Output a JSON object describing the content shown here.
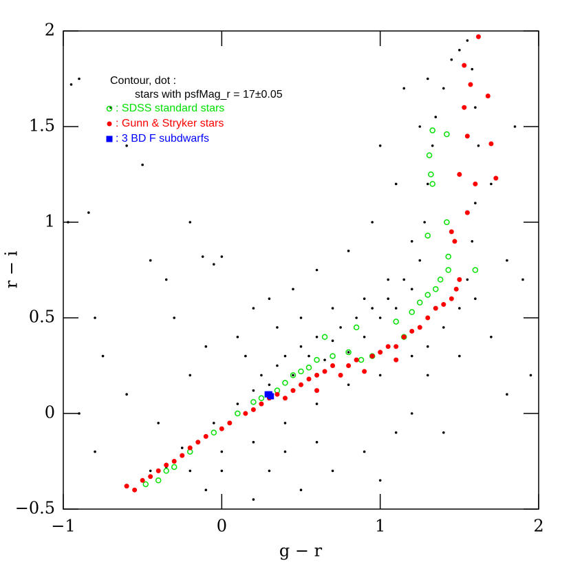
{
  "chart_data": {
    "type": "scatter",
    "x_label": "g − r",
    "y_label": "r − i",
    "annotations": [
      "Contour, dot :",
      "stars with psfMag_r = 17±0.05"
    ],
    "xlim": [
      -1,
      2
    ],
    "ylim": [
      -0.5,
      2
    ],
    "xticks": [
      {
        "value": -1,
        "label": "−1"
      },
      0,
      1,
      2
    ],
    "yticks": [
      {
        "value": -0.5,
        "label": "−0.5"
      },
      0,
      0.5,
      1,
      1.5,
      2
    ],
    "series": [
      {
        "color": "#000000",
        "marker": "dot",
        "x": [
          -0.97,
          -0.95,
          -0.9,
          -0.84,
          -0.8,
          -0.75,
          -0.7,
          -0.6,
          -0.5,
          -0.45,
          -0.35,
          -0.3,
          -0.2,
          -0.12,
          -0.05,
          0.0,
          -0.9,
          -0.8,
          -0.6,
          -0.4,
          -0.2,
          -0.1,
          0.1,
          0.2,
          0.3,
          0.45,
          0.6,
          0.8,
          0.95,
          1.0,
          1.1,
          1.2,
          1.25,
          1.3,
          1.15,
          1.7,
          1.8,
          1.85,
          1.9,
          1.95,
          1.8,
          1.7,
          1.6,
          1.5,
          1.3,
          1.2,
          1.1,
          0.9,
          0.7,
          0.5,
          0.4,
          0.3,
          0.2,
          0.0,
          -0.1,
          0.6,
          1.4,
          1.0,
          0.15,
          0.35,
          0.5,
          0.7,
          0.9,
          1.05,
          -0.55,
          -0.45,
          -0.35,
          -0.25,
          -0.15,
          -0.05,
          0.05,
          0.1,
          0.15,
          0.2,
          0.25,
          0.3,
          0.35,
          0.4,
          0.45,
          0.5,
          0.55,
          0.6,
          0.65,
          0.7,
          0.75,
          0.8,
          0.85,
          0.9,
          0.95,
          1.0,
          1.05,
          1.1,
          1.15,
          1.2,
          1.25,
          1.28,
          1.3,
          1.33,
          1.35,
          1.4,
          1.45,
          1.5,
          1.55,
          1.58,
          1.6,
          1.62,
          1.6,
          1.58,
          1.55,
          1.5,
          1.4,
          1.3,
          1.2,
          1.0,
          0.8,
          0.6,
          0.4,
          0.2,
          0.0,
          -0.2
        ],
        "values": [
          1.0,
          1.72,
          1.75,
          1.05,
          0.5,
          0.3,
          1.6,
          1.4,
          1.3,
          0.8,
          0.7,
          0.5,
          1.0,
          0.82,
          0.78,
          0.82,
          0.0,
          -0.2,
          0.1,
          -0.05,
          0.2,
          0.35,
          0.4,
          0.55,
          0.6,
          0.65,
          0.75,
          0.85,
          1.0,
          1.4,
          1.2,
          0.9,
          1.5,
          1.75,
          1.7,
          1.2,
          0.8,
          1.5,
          0.7,
          0.2,
          0.1,
          0.4,
          0.6,
          0.3,
          0.2,
          0.0,
          -0.1,
          -0.2,
          -0.3,
          -0.4,
          -0.2,
          -0.3,
          -0.45,
          -0.3,
          -0.4,
          -0.15,
          -0.1,
          -0.35,
          0.3,
          0.45,
          0.5,
          0.55,
          0.6,
          0.7,
          -0.4,
          -0.3,
          -0.28,
          -0.18,
          -0.15,
          -0.05,
          -0.05,
          0.05,
          0.0,
          0.12,
          0.2,
          0.15,
          0.25,
          0.3,
          0.2,
          0.35,
          0.3,
          0.4,
          0.28,
          0.38,
          0.45,
          0.32,
          0.5,
          0.4,
          0.55,
          0.5,
          0.6,
          0.55,
          0.7,
          0.65,
          0.8,
          1.0,
          1.2,
          1.4,
          1.55,
          1.7,
          1.85,
          1.9,
          1.95,
          1.8,
          1.6,
          1.4,
          1.1,
          0.9,
          0.7,
          0.55,
          0.45,
          0.35,
          0.3,
          0.2,
          0.15,
          0.05,
          -0.05,
          -0.15,
          -0.2,
          -0.3
        ]
      },
      {
        "name": ": SDSS standard stars",
        "color": "#00e000",
        "marker": "circle",
        "x": [
          -0.48,
          -0.4,
          -0.35,
          -0.3,
          -0.2,
          -0.05,
          0.1,
          0.2,
          0.25,
          0.35,
          0.4,
          0.45,
          0.5,
          0.55,
          0.6,
          0.7,
          0.8,
          0.85,
          0.88,
          0.95,
          1.1,
          1.2,
          1.25,
          1.3,
          1.35,
          1.38,
          1.43,
          1.32,
          1.33,
          1.31,
          1.33,
          1.42,
          1.42,
          1.43,
          1.6,
          1.3,
          0.65,
          1.15
        ],
        "values": [
          -0.37,
          -0.35,
          -0.3,
          -0.28,
          -0.2,
          -0.1,
          0.0,
          0.06,
          0.08,
          0.12,
          0.16,
          0.2,
          0.22,
          0.24,
          0.28,
          0.3,
          0.32,
          0.45,
          0.28,
          0.3,
          0.48,
          0.53,
          0.58,
          0.62,
          0.65,
          0.7,
          0.75,
          1.25,
          1.2,
          1.35,
          1.48,
          1.46,
          1.0,
          0.82,
          0.75,
          0.93,
          0.4,
          0.4
        ]
      },
      {
        "name": ": Gunn & Stryker stars",
        "color": "#ff0000",
        "marker": "dot-large",
        "x": [
          -0.6,
          -0.55,
          -0.5,
          -0.45,
          -0.4,
          -0.35,
          -0.3,
          -0.25,
          -0.2,
          -0.15,
          -0.1,
          0.0,
          0.05,
          0.15,
          0.25,
          0.3,
          0.35,
          0.4,
          0.45,
          0.5,
          0.55,
          0.6,
          0.65,
          0.7,
          0.75,
          0.8,
          0.85,
          0.9,
          0.95,
          1.0,
          1.05,
          1.1,
          1.15,
          1.2,
          1.25,
          1.3,
          1.35,
          1.4,
          1.45,
          1.48,
          1.5,
          1.45,
          1.47,
          1.5,
          1.55,
          1.55,
          1.6,
          1.53,
          1.57,
          1.53,
          1.62,
          1.68,
          1.7,
          1.73,
          0.2,
          0.6,
          1.1
        ],
        "values": [
          -0.38,
          -0.4,
          -0.35,
          -0.33,
          -0.3,
          -0.27,
          -0.25,
          -0.22,
          -0.18,
          -0.15,
          -0.12,
          -0.08,
          -0.05,
          0.0,
          0.05,
          0.08,
          0.1,
          0.08,
          0.12,
          0.15,
          0.18,
          0.2,
          0.22,
          0.25,
          0.2,
          0.25,
          0.28,
          0.22,
          0.3,
          0.32,
          0.35,
          0.35,
          0.4,
          0.43,
          0.45,
          0.5,
          0.55,
          0.57,
          0.6,
          0.65,
          0.7,
          0.95,
          0.9,
          1.25,
          1.05,
          1.45,
          1.2,
          1.6,
          1.72,
          1.82,
          1.97,
          1.66,
          1.41,
          1.23,
          0.02,
          0.12,
          0.28
        ]
      },
      {
        "name": ": 3 BD F subdwarfs",
        "color": "#0000ff",
        "marker": "square",
        "x": [
          0.29,
          0.3,
          0.31
        ],
        "values": [
          0.1,
          0.1,
          0.09
        ]
      }
    ]
  }
}
